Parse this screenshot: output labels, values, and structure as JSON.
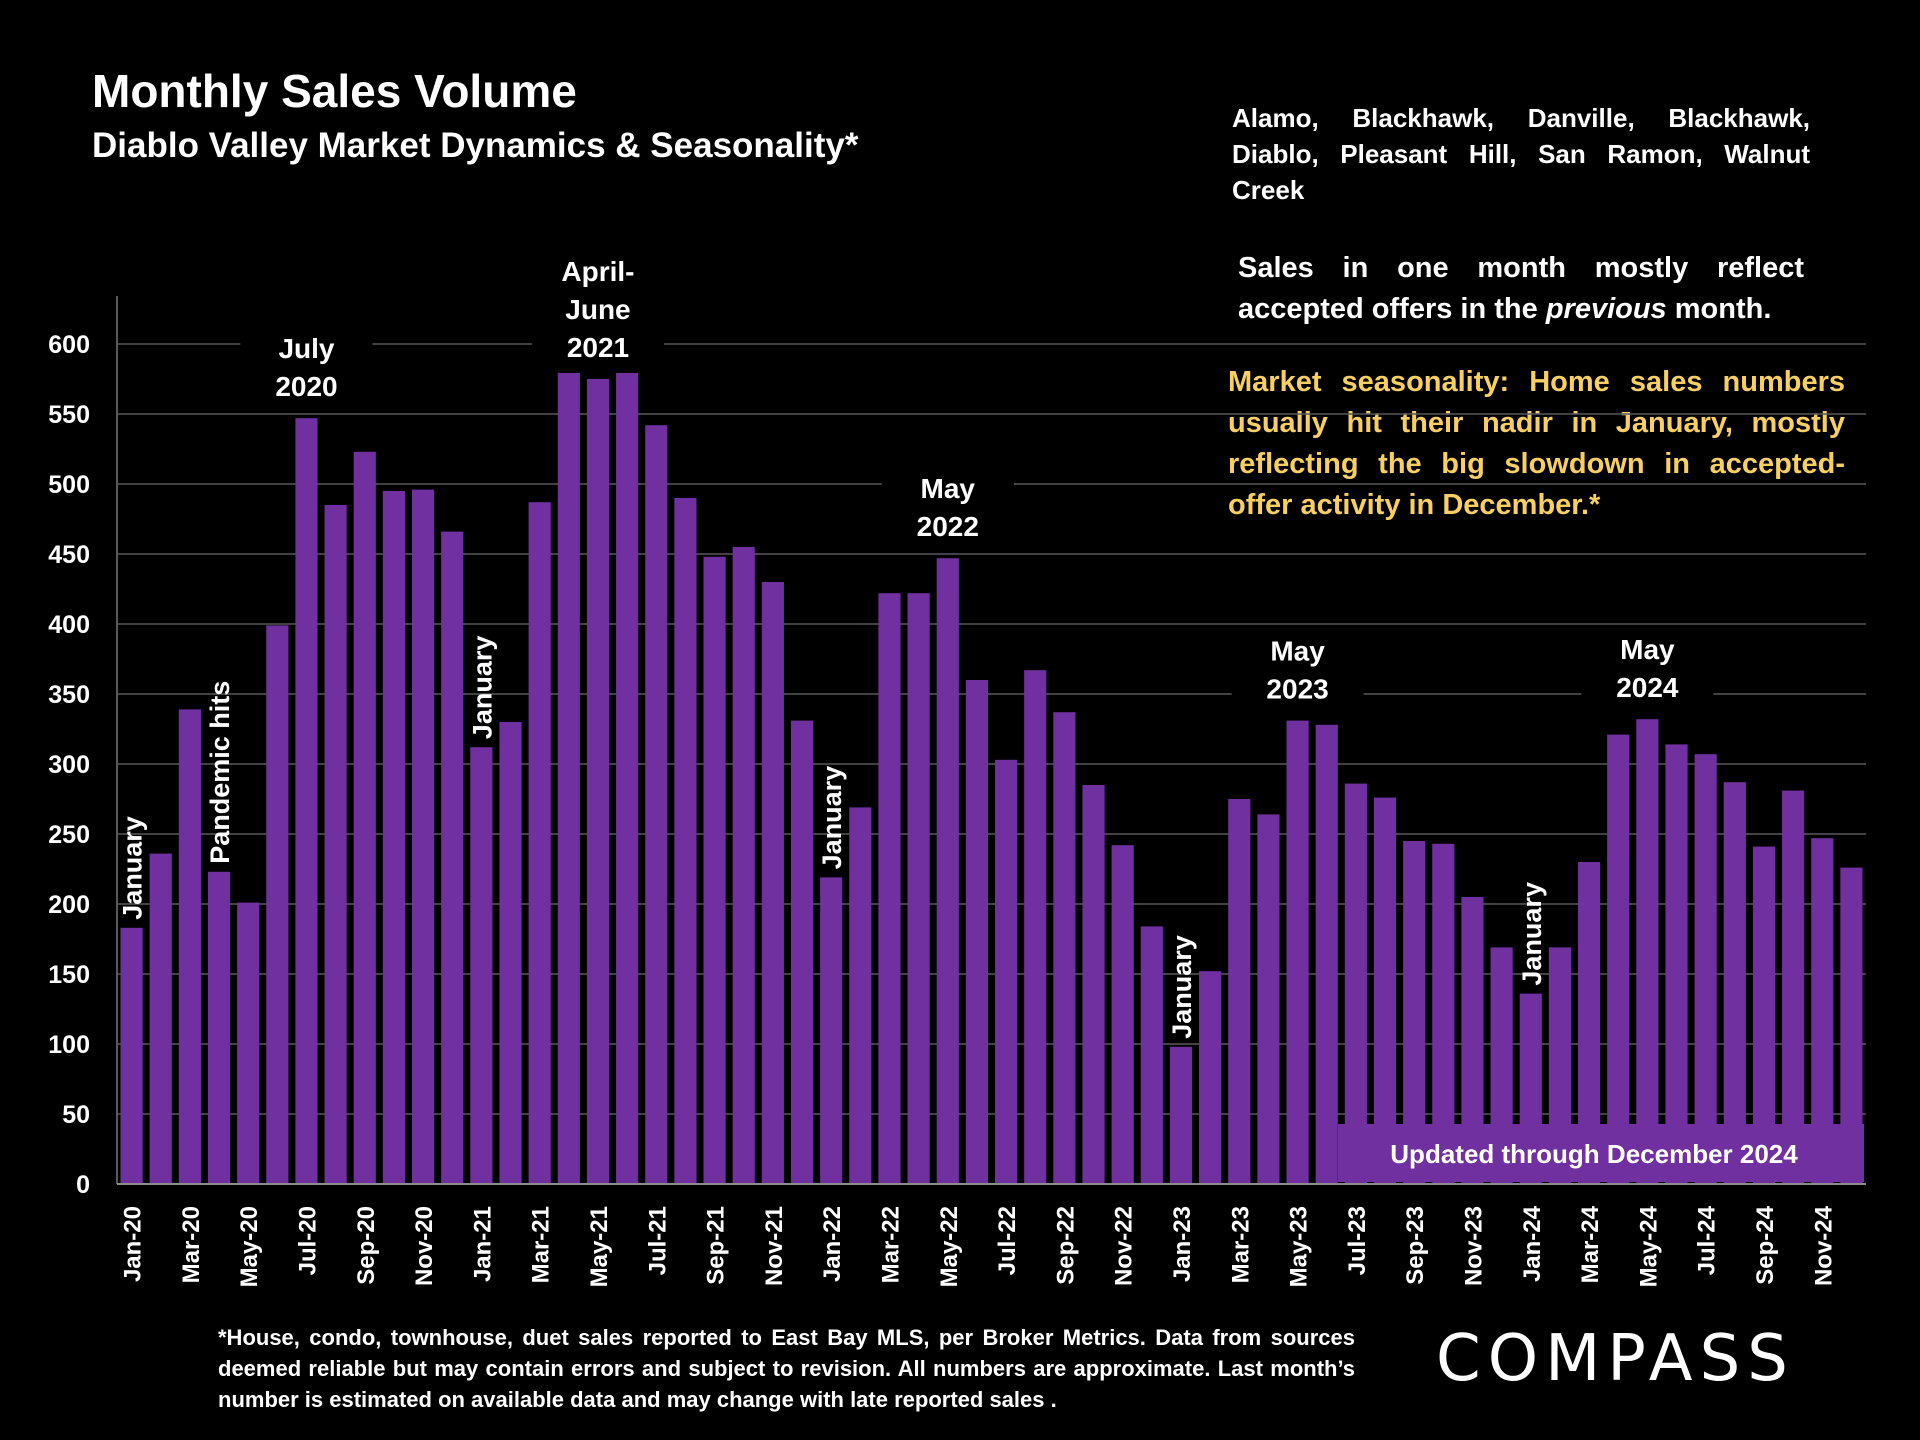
{
  "header": {
    "title": "Monthly Sales Volume",
    "subtitle": "Diablo Valley Market Dynamics & Seasonality*",
    "cities": "Alamo, Blackhawk, Danville, Blackhawk, Diablo, Pleasant Hill, San Ramon, Walnut Creek"
  },
  "notes": {
    "note1_before": "Sales in one month mostly reflect accepted offers in the ",
    "note1_italic": "previous",
    "note1_after": " month.",
    "note2": "Market seasonality: Home sales numbers usually hit their nadir in January, mostly reflecting the big slowdown in accepted-offer activity in December.*"
  },
  "footnote": "*House, condo, townhouse, duet sales reported to East Bay MLS, per Broker Metrics. Data from sources deemed reliable but may contain errors and subject to revision. All numbers are approximate. Last month’s number is estimated on available data and may change with late reported sales .",
  "logo": "COMPASS",
  "colors": {
    "bar": "#7030a0",
    "background": "#000000",
    "accent_text": "#f7cf63",
    "grid": "#595959"
  },
  "chart_data": {
    "type": "bar",
    "title": "Monthly Sales Volume",
    "ylim": [
      0,
      600
    ],
    "yticks": [
      0,
      50,
      100,
      150,
      200,
      250,
      300,
      350,
      400,
      450,
      500,
      550,
      600
    ],
    "grid": true,
    "categories": [
      "Jan-20",
      "Feb-20",
      "Mar-20",
      "Apr-20",
      "May-20",
      "Jun-20",
      "Jul-20",
      "Aug-20",
      "Sep-20",
      "Oct-20",
      "Nov-20",
      "Dec-20",
      "Jan-21",
      "Feb-21",
      "Mar-21",
      "Apr-21",
      "May-21",
      "Jun-21",
      "Jul-21",
      "Aug-21",
      "Sep-21",
      "Oct-21",
      "Nov-21",
      "Dec-21",
      "Jan-22",
      "Feb-22",
      "Mar-22",
      "Apr-22",
      "May-22",
      "Jun-22",
      "Jul-22",
      "Aug-22",
      "Sep-22",
      "Oct-22",
      "Nov-22",
      "Dec-22",
      "Jan-23",
      "Feb-23",
      "Mar-23",
      "Apr-23",
      "May-23",
      "Jun-23",
      "Jul-23",
      "Aug-23",
      "Sep-23",
      "Oct-23",
      "Nov-23",
      "Dec-23",
      "Jan-24",
      "Feb-24",
      "Mar-24",
      "Apr-24",
      "May-24",
      "Jun-24",
      "Jul-24",
      "Aug-24",
      "Sep-24",
      "Oct-24",
      "Nov-24",
      "Dec-24"
    ],
    "tick_labels": [
      "Jan-20",
      "Mar-20",
      "May-20",
      "Jul-20",
      "Sep-20",
      "Nov-20",
      "Jan-21",
      "Mar-21",
      "May-21",
      "Jul-21",
      "Sep-21",
      "Nov-21",
      "Jan-22",
      "Mar-22",
      "May-22",
      "Jul-22",
      "Sep-22",
      "Nov-22",
      "Jan-23",
      "Mar-23",
      "May-23",
      "Jul-23",
      "Sep-23",
      "Nov-23",
      "Jan-24",
      "Mar-24",
      "May-24",
      "Jul-24",
      "Sep-24",
      "Nov-24"
    ],
    "values": [
      183,
      236,
      339,
      223,
      201,
      399,
      547,
      485,
      523,
      495,
      496,
      466,
      312,
      330,
      487,
      600,
      575,
      600,
      542,
      490,
      448,
      455,
      430,
      331,
      219,
      269,
      422,
      422,
      447,
      360,
      303,
      367,
      337,
      285,
      242,
      184,
      98,
      152,
      275,
      264,
      331,
      328,
      286,
      276,
      245,
      243,
      205,
      169,
      136,
      169,
      230,
      321,
      332,
      314,
      307,
      287,
      241,
      281,
      247,
      226
    ],
    "annotations": [
      {
        "text": "January",
        "category": "Jan-20",
        "rotated": true
      },
      {
        "text": "Pandemic hits",
        "category": "Apr-20",
        "rotated": true
      },
      {
        "text": "July\n2020",
        "category": "Jul-20",
        "rotated": false
      },
      {
        "text": "January",
        "category": "Jan-21",
        "rotated": true
      },
      {
        "text": "April-\nJune\n2021",
        "category": "May-21",
        "rotated": false
      },
      {
        "text": "May\n2022",
        "category": "May-22",
        "rotated": false
      },
      {
        "text": "January",
        "category": "Jan-22",
        "rotated": true
      },
      {
        "text": "January",
        "category": "Jan-23",
        "rotated": true
      },
      {
        "text": "May\n2023",
        "category": "May-23",
        "rotated": false
      },
      {
        "text": "January",
        "category": "Jan-24",
        "rotated": true
      },
      {
        "text": "May\n2024",
        "category": "May-24",
        "rotated": false
      }
    ],
    "updated_label": "Updated through December 2024"
  }
}
